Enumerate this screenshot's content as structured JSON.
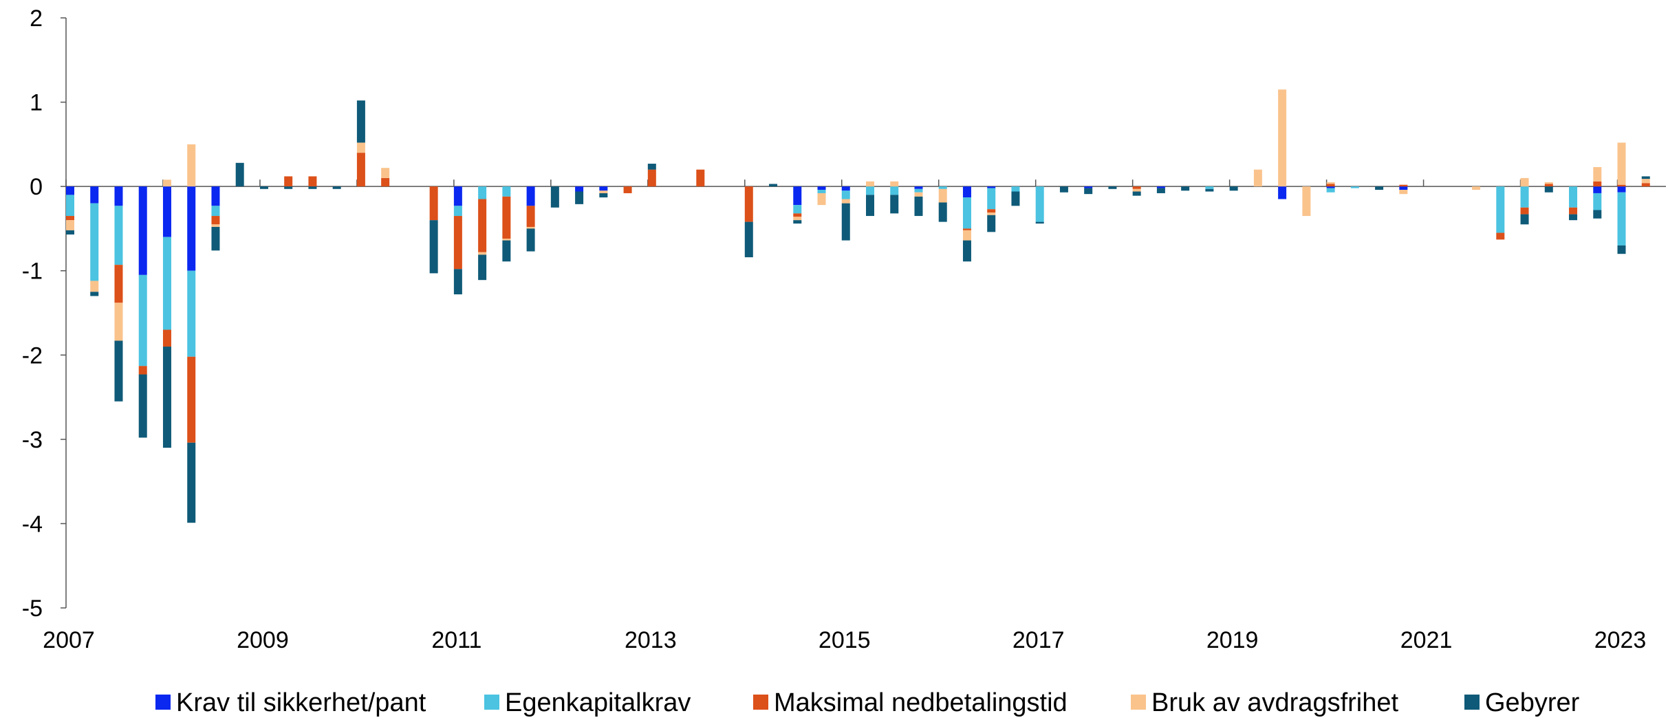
{
  "chart_data": {
    "type": "bar",
    "stacked": true,
    "title": "",
    "xlabel": "",
    "ylabel": "",
    "ylim": [
      -5,
      2
    ],
    "yticks": [
      2,
      1,
      0,
      -1,
      -2,
      -3,
      -4,
      -5
    ],
    "xlim": [
      2007,
      2023.5
    ],
    "xticks": [
      2007,
      2009,
      2011,
      2013,
      2015,
      2017,
      2019,
      2021,
      2023
    ],
    "grid": false,
    "legend_position": "bottom",
    "x": [
      2007.0,
      2007.25,
      2007.5,
      2007.75,
      2008.0,
      2008.25,
      2008.5,
      2008.75,
      2009.0,
      2009.25,
      2009.5,
      2009.75,
      2010.0,
      2010.25,
      2010.5,
      2010.75,
      2011.0,
      2011.25,
      2011.5,
      2011.75,
      2012.0,
      2012.25,
      2012.5,
      2012.75,
      2013.0,
      2013.25,
      2013.5,
      2013.75,
      2014.0,
      2014.25,
      2014.5,
      2014.75,
      2015.0,
      2015.25,
      2015.5,
      2015.75,
      2016.0,
      2016.25,
      2016.5,
      2016.75,
      2017.0,
      2017.25,
      2017.5,
      2017.75,
      2018.0,
      2018.25,
      2018.5,
      2018.75,
      2019.0,
      2019.25,
      2019.5,
      2019.75,
      2020.0,
      2020.25,
      2020.5,
      2020.75,
      2021.0,
      2021.25,
      2021.5,
      2021.75,
      2022.0,
      2022.25,
      2022.5,
      2022.75,
      2023.0,
      2023.25
    ],
    "series": [
      {
        "name": "Krav til sikkerhet/pant",
        "color": "#0a28f0",
        "values": [
          -0.1,
          -0.2,
          -0.23,
          -1.05,
          -0.6,
          -1.0,
          -0.23,
          0,
          0,
          0,
          0,
          0,
          0,
          0,
          0,
          0,
          -0.23,
          0,
          0,
          -0.23,
          0,
          -0.06,
          -0.05,
          0,
          0,
          0,
          0,
          0,
          0,
          0,
          -0.22,
          -0.04,
          -0.05,
          0,
          0,
          -0.03,
          0,
          -0.13,
          -0.02,
          0,
          0,
          0,
          -0.02,
          0,
          0,
          -0.02,
          0,
          0,
          0,
          0,
          -0.15,
          0,
          -0.02,
          0,
          0,
          -0.04,
          0,
          0,
          0,
          0,
          0,
          0,
          0,
          -0.08,
          -0.07,
          0
        ]
      },
      {
        "name": "Egenkapitalkrav",
        "color": "#4bc3e1",
        "values": [
          -0.25,
          -0.92,
          -0.7,
          -1.08,
          -1.1,
          -1.02,
          -0.12,
          0,
          0,
          0,
          0,
          0,
          0,
          0,
          0,
          0,
          -0.12,
          -0.15,
          -0.12,
          0,
          0,
          0,
          0,
          0,
          0,
          0,
          0,
          0,
          0,
          0,
          -0.1,
          -0.04,
          -0.1,
          -0.1,
          -0.1,
          -0.04,
          -0.03,
          -0.37,
          -0.25,
          -0.06,
          -0.42,
          0,
          0,
          0,
          0,
          0,
          0,
          -0.03,
          0,
          0,
          0,
          0,
          -0.05,
          -0.02,
          0,
          0,
          0,
          0,
          0,
          -0.55,
          -0.25,
          0,
          -0.25,
          -0.2,
          -0.63,
          0
        ]
      },
      {
        "name": "Maksimal nedbetalingstid",
        "color": "#dc5019",
        "values": [
          -0.05,
          0,
          -0.45,
          -0.1,
          -0.2,
          -1.02,
          -0.1,
          0,
          0,
          0.12,
          0.12,
          0,
          0.4,
          0.1,
          0,
          -0.4,
          -0.63,
          -0.63,
          -0.5,
          -0.25,
          0,
          0,
          0,
          -0.08,
          0.2,
          0,
          0.2,
          0,
          -0.42,
          0,
          -0.04,
          0,
          0,
          0,
          0,
          0,
          0,
          -0.02,
          -0.04,
          0,
          0,
          0,
          0,
          0,
          -0.03,
          0,
          0,
          0,
          0,
          0,
          0,
          0,
          0.03,
          0,
          0,
          0.02,
          0,
          0,
          0,
          -0.08,
          -0.08,
          0.03,
          -0.08,
          0.06,
          0.02,
          0.04
        ]
      },
      {
        "name": "Bruk av avdragsfrihet",
        "color": "#fac38c",
        "values": [
          -0.12,
          -0.13,
          -0.45,
          0,
          0.08,
          0.5,
          -0.03,
          0,
          0,
          0,
          0,
          0,
          0.12,
          0.12,
          0,
          0,
          0,
          -0.03,
          -0.02,
          -0.02,
          0,
          0,
          -0.03,
          0,
          0,
          0,
          0,
          0,
          0,
          0,
          -0.04,
          -0.14,
          -0.05,
          0.06,
          0.06,
          -0.05,
          -0.16,
          -0.12,
          -0.03,
          0,
          0,
          0,
          0,
          0,
          -0.03,
          0,
          0,
          0,
          0,
          0.2,
          1.15,
          -0.35,
          0.02,
          0,
          0,
          -0.05,
          0,
          0,
          -0.04,
          0,
          0.1,
          0.02,
          0,
          0.17,
          0.5,
          0.05
        ]
      },
      {
        "name": "Gebyrer",
        "color": "#0f5a78",
        "values": [
          -0.05,
          -0.05,
          -0.72,
          -0.75,
          -1.2,
          -0.95,
          -0.28,
          0.28,
          -0.03,
          -0.03,
          -0.03,
          -0.03,
          0.5,
          0,
          0,
          -0.63,
          -0.3,
          -0.3,
          -0.25,
          -0.27,
          -0.25,
          -0.15,
          -0.05,
          0,
          0.07,
          0,
          0,
          0,
          -0.42,
          0.03,
          -0.04,
          0,
          -0.44,
          -0.25,
          -0.22,
          -0.23,
          -0.23,
          -0.25,
          -0.2,
          -0.17,
          -0.02,
          -0.07,
          -0.07,
          -0.03,
          -0.05,
          -0.06,
          -0.05,
          -0.03,
          -0.05,
          0,
          0,
          0,
          0,
          0,
          -0.04,
          0,
          0,
          0,
          0,
          0,
          -0.12,
          -0.07,
          -0.07,
          -0.1,
          -0.1,
          0.03
        ]
      }
    ]
  }
}
